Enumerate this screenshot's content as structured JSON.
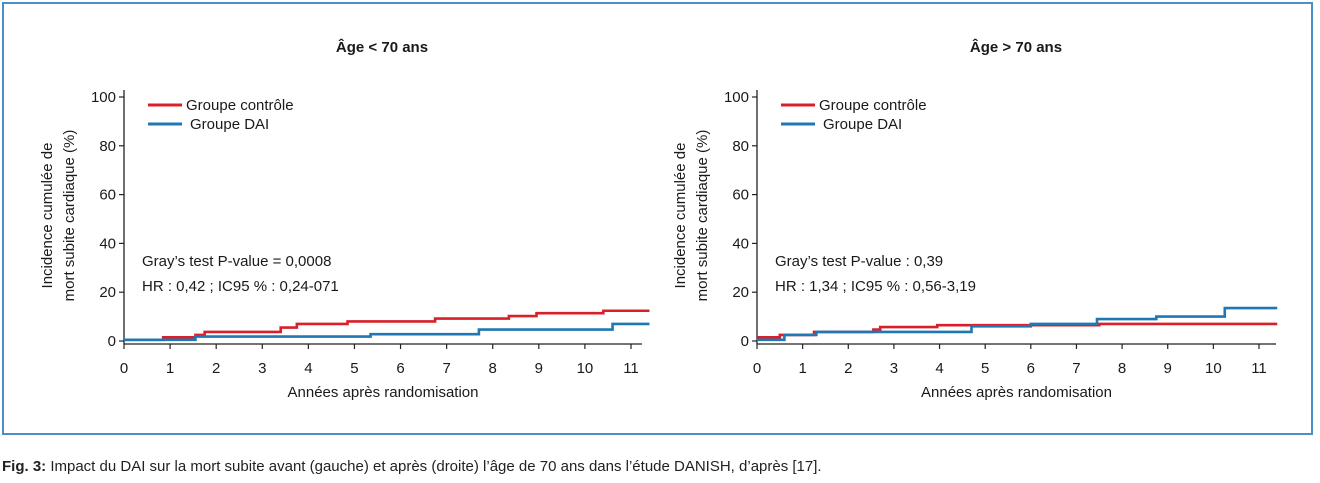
{
  "colors": {
    "control": "#d9202a",
    "dai": "#1f77b4",
    "frame": "#4a90c8"
  },
  "caption": {
    "label": "Fig. 3:",
    "text": " Impact du DAI sur la mort subite avant (gauche) et après (droite) l’âge de 70 ans dans l’étude DANISH, d’après [17]."
  },
  "chart_data": [
    {
      "type": "line",
      "title": "Âge < 70 ans",
      "xlabel": "Années après randomisation",
      "ylabel_line1": "Incidence cumulée de",
      "ylabel_line2": "mort subite cardiaque (%)",
      "xlim": [
        0,
        11.4
      ],
      "ylim": [
        0,
        100
      ],
      "xticks": [
        "0",
        "1",
        "2",
        "3",
        "4",
        "5",
        "6",
        "7",
        "8",
        "9",
        "10",
        "11"
      ],
      "yticks": [
        "0",
        "20",
        "40",
        "60",
        "80",
        "100"
      ],
      "legend_position": "top-left",
      "annotation_line1": "Gray’s test P-value = 0,0008",
      "annotation_line2": "HR : 0,42 ; IC95 % : 0,24-071",
      "series": [
        {
          "name": "Groupe contrôle",
          "step": true,
          "x": [
            0,
            0.85,
            1.55,
            1.75,
            3.4,
            3.75,
            4.85,
            6.75,
            8.35,
            8.95,
            10.4,
            11.4
          ],
          "y": [
            0.5,
            1.5,
            2.5,
            3.7,
            5.5,
            7,
            8,
            9.2,
            10.2,
            11.4,
            12.4,
            12.4
          ]
        },
        {
          "name": "Groupe DAI",
          "step": true,
          "x": [
            0,
            1.55,
            5.35,
            7.7,
            10.6,
            11.4
          ],
          "y": [
            0.5,
            1.8,
            2.8,
            4.7,
            7,
            7
          ]
        }
      ]
    },
    {
      "type": "line",
      "title": "Âge > 70 ans",
      "xlabel": "Années après randomisation",
      "ylabel_line1": "Incidence cumulée de",
      "ylabel_line2": "mort subite cardiaque (%)",
      "xlim": [
        0,
        11.4
      ],
      "ylim": [
        0,
        100
      ],
      "xticks": [
        "0",
        "1",
        "2",
        "3",
        "4",
        "5",
        "6",
        "7",
        "8",
        "9",
        "10",
        "11"
      ],
      "yticks": [
        "0",
        "20",
        "40",
        "60",
        "80",
        "100"
      ],
      "legend_position": "top-left",
      "annotation_line1": "Gray’s test P-value : 0,39",
      "annotation_line2": "HR : 1,34 ; IC95 % : 0,56-3,19",
      "series": [
        {
          "name": "Groupe contrôle",
          "step": true,
          "x": [
            0,
            0.5,
            1.25,
            2.55,
            2.7,
            3.95,
            7.5,
            11.4
          ],
          "y": [
            1.5,
            2.5,
            3.7,
            4.7,
            5.7,
            6.5,
            7,
            7
          ]
        },
        {
          "name": "Groupe DAI",
          "step": true,
          "x": [
            0,
            0.6,
            1.3,
            4.7,
            6.0,
            7.45,
            8.75,
            10.25,
            11.4
          ],
          "y": [
            0.5,
            2.5,
            3.7,
            6,
            7,
            9,
            10,
            13.5,
            13.5
          ]
        }
      ]
    }
  ]
}
